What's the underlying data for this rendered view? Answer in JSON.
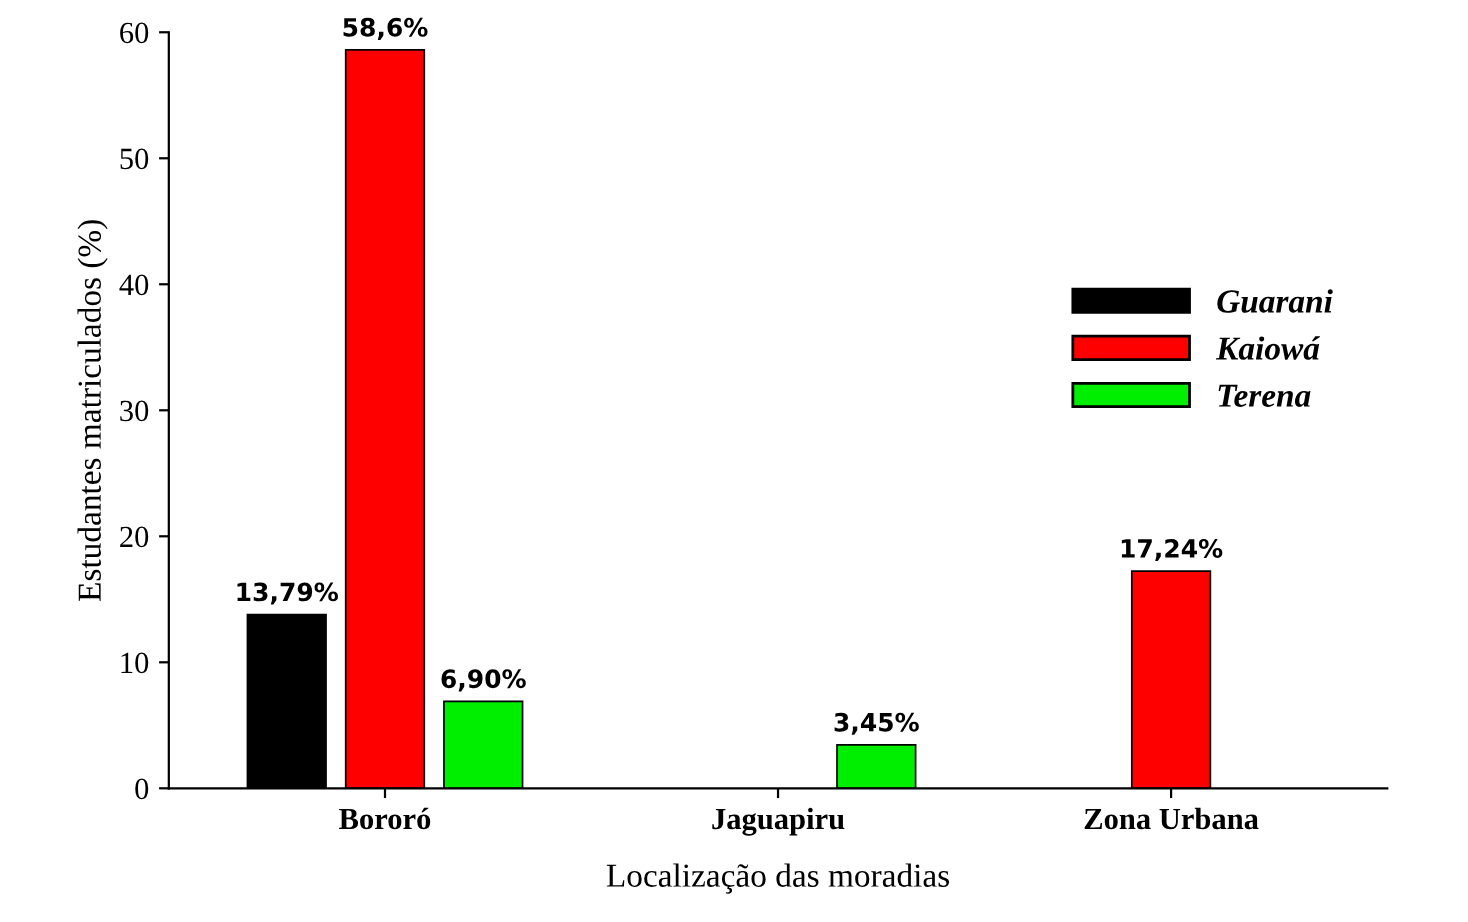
{
  "chart_data": {
    "type": "bar",
    "xlabel": "Localização das moradias",
    "ylabel": "Estudantes matriculados (%)",
    "categories": [
      "Bororó",
      "Jaguapiru",
      "Zona Urbana"
    ],
    "series": [
      {
        "name": "Guarani",
        "color": "#000000",
        "values": [
          13.79,
          null,
          null
        ],
        "value_labels": [
          "13,79%",
          null,
          null
        ]
      },
      {
        "name": "Kaiowá",
        "color": "#ff0000",
        "values": [
          58.6,
          null,
          17.24
        ],
        "value_labels": [
          "58,6%",
          null,
          "17,24%"
        ]
      },
      {
        "name": "Terena",
        "color": "#00ee00",
        "values": [
          6.9,
          3.45,
          null
        ],
        "value_labels": [
          "6,90%",
          "3,45%",
          null
        ]
      }
    ],
    "ylim": [
      0,
      60
    ],
    "yticks": [
      0,
      10,
      20,
      30,
      40,
      50,
      60
    ],
    "grid": false,
    "legend": "right"
  }
}
